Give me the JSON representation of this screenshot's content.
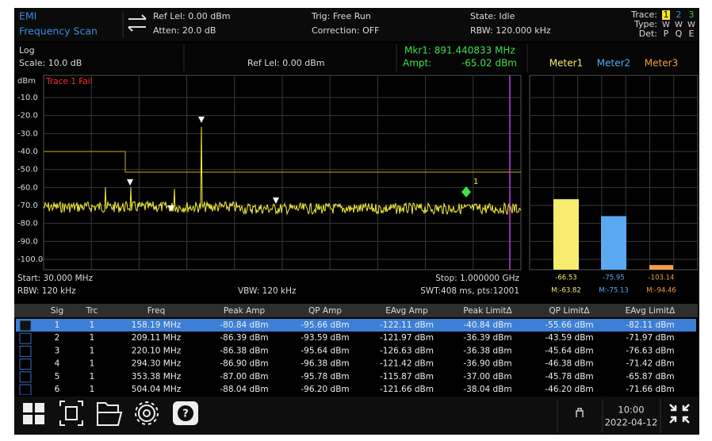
{
  "header": {
    "app": "EMI",
    "mode": "Frequency Scan",
    "ref_level": "Ref Lel: 0.00 dBm",
    "atten": "Atten: 20.0 dB",
    "trig": "Trig: Free Run",
    "correction": "Correction: OFF",
    "state": "State: Idle",
    "rbw": "RBW: 120.000 kHz",
    "trace_label": "Trace:",
    "type_label": "Type:",
    "det_label": "Det:",
    "traces": [
      "1",
      "2",
      "3"
    ],
    "types": [
      "W",
      "W",
      "W"
    ],
    "dets": [
      "P",
      "Q",
      "E"
    ]
  },
  "plot": {
    "mode": "Log",
    "scale": "Scale: 10.0 dB",
    "ref_level": "Ref Lel: 0.00 dBm",
    "marker_freq": "Mkr1: 891.440833 MHz",
    "ampt_label": "Ampt:",
    "marker_ampt": "-65.02 dBm",
    "unit": "dBm",
    "status": "Trace 1 Fail",
    "marker_id": "1",
    "yticks": [
      {
        "value": -10,
        "label": "-10.0"
      },
      {
        "value": -20,
        "label": "-20.0"
      },
      {
        "value": -30,
        "label": "-30.0"
      },
      {
        "value": -40,
        "label": "-40.0"
      },
      {
        "value": -50,
        "label": "-50.0"
      },
      {
        "value": -60,
        "label": "-60.0"
      },
      {
        "value": -70,
        "label": "-70.0"
      },
      {
        "value": -80,
        "label": "-80.0"
      },
      {
        "value": -90,
        "label": "-90.0"
      },
      {
        "value": -100,
        "label": "-100.0"
      }
    ],
    "start": "Start: 30.000 MHz",
    "rbw": "RBW: 120 kHz",
    "vbw": "VBW: 120 kHz",
    "stop": "Stop: 1.000000 GHz",
    "sweep": "SWT:408 ms, pts:12001"
  },
  "meters": [
    {
      "name": "Meter1",
      "value": -66.53,
      "max_label": "M:-63.82",
      "color": "#f7ec6e"
    },
    {
      "name": "Meter2",
      "value": -75.95,
      "max_label": "M:-75.13",
      "color": "#5aa9f0"
    },
    {
      "name": "Meter3",
      "value": -103.14,
      "max_label": "M:-94.46",
      "color": "#f0a040"
    }
  ],
  "table": {
    "columns": [
      "Sig",
      "Trc",
      "Freq",
      "Peak Amp",
      "QP Amp",
      "EAvg Amp",
      "Peak LimitΔ",
      "QP LimitΔ",
      "EAvg LimitΔ"
    ],
    "rows": [
      [
        "1",
        "1",
        "158.19 MHz",
        "-80.84 dBm",
        "-95.66 dBm",
        "-122.11 dBm",
        "-40.84 dBm",
        "-55.66 dBm",
        "-82.11 dBm"
      ],
      [
        "2",
        "1",
        "209.11 MHz",
        "-86.39 dBm",
        "-93.59 dBm",
        "-121.97 dBm",
        "-36.39 dBm",
        "-43.59 dBm",
        "-71.97 dBm"
      ],
      [
        "3",
        "1",
        "220.10 MHz",
        "-86.38 dBm",
        "-95.64 dBm",
        "-126.63 dBm",
        "-36.38 dBm",
        "-45.64 dBm",
        "-76.63 dBm"
      ],
      [
        "4",
        "1",
        "294.30 MHz",
        "-86.90 dBm",
        "-96.38 dBm",
        "-121.42 dBm",
        "-36.90 dBm",
        "-46.38 dBm",
        "-71.42 dBm"
      ],
      [
        "5",
        "1",
        "353.38 MHz",
        "-87.00 dBm",
        "-95.78 dBm",
        "-115.87 dBm",
        "-37.00 dBm",
        "-45.78 dBm",
        "-65.87 dBm"
      ],
      [
        "6",
        "1",
        "504.04 MHz",
        "-88.04 dBm",
        "-96.20 dBm",
        "-121.66 dBm",
        "-38.04 dBm",
        "-46.20 dBm",
        "-71.66 dBm"
      ]
    ]
  },
  "status_bar": {
    "time": "10:00",
    "date": "2022-04-12"
  }
}
